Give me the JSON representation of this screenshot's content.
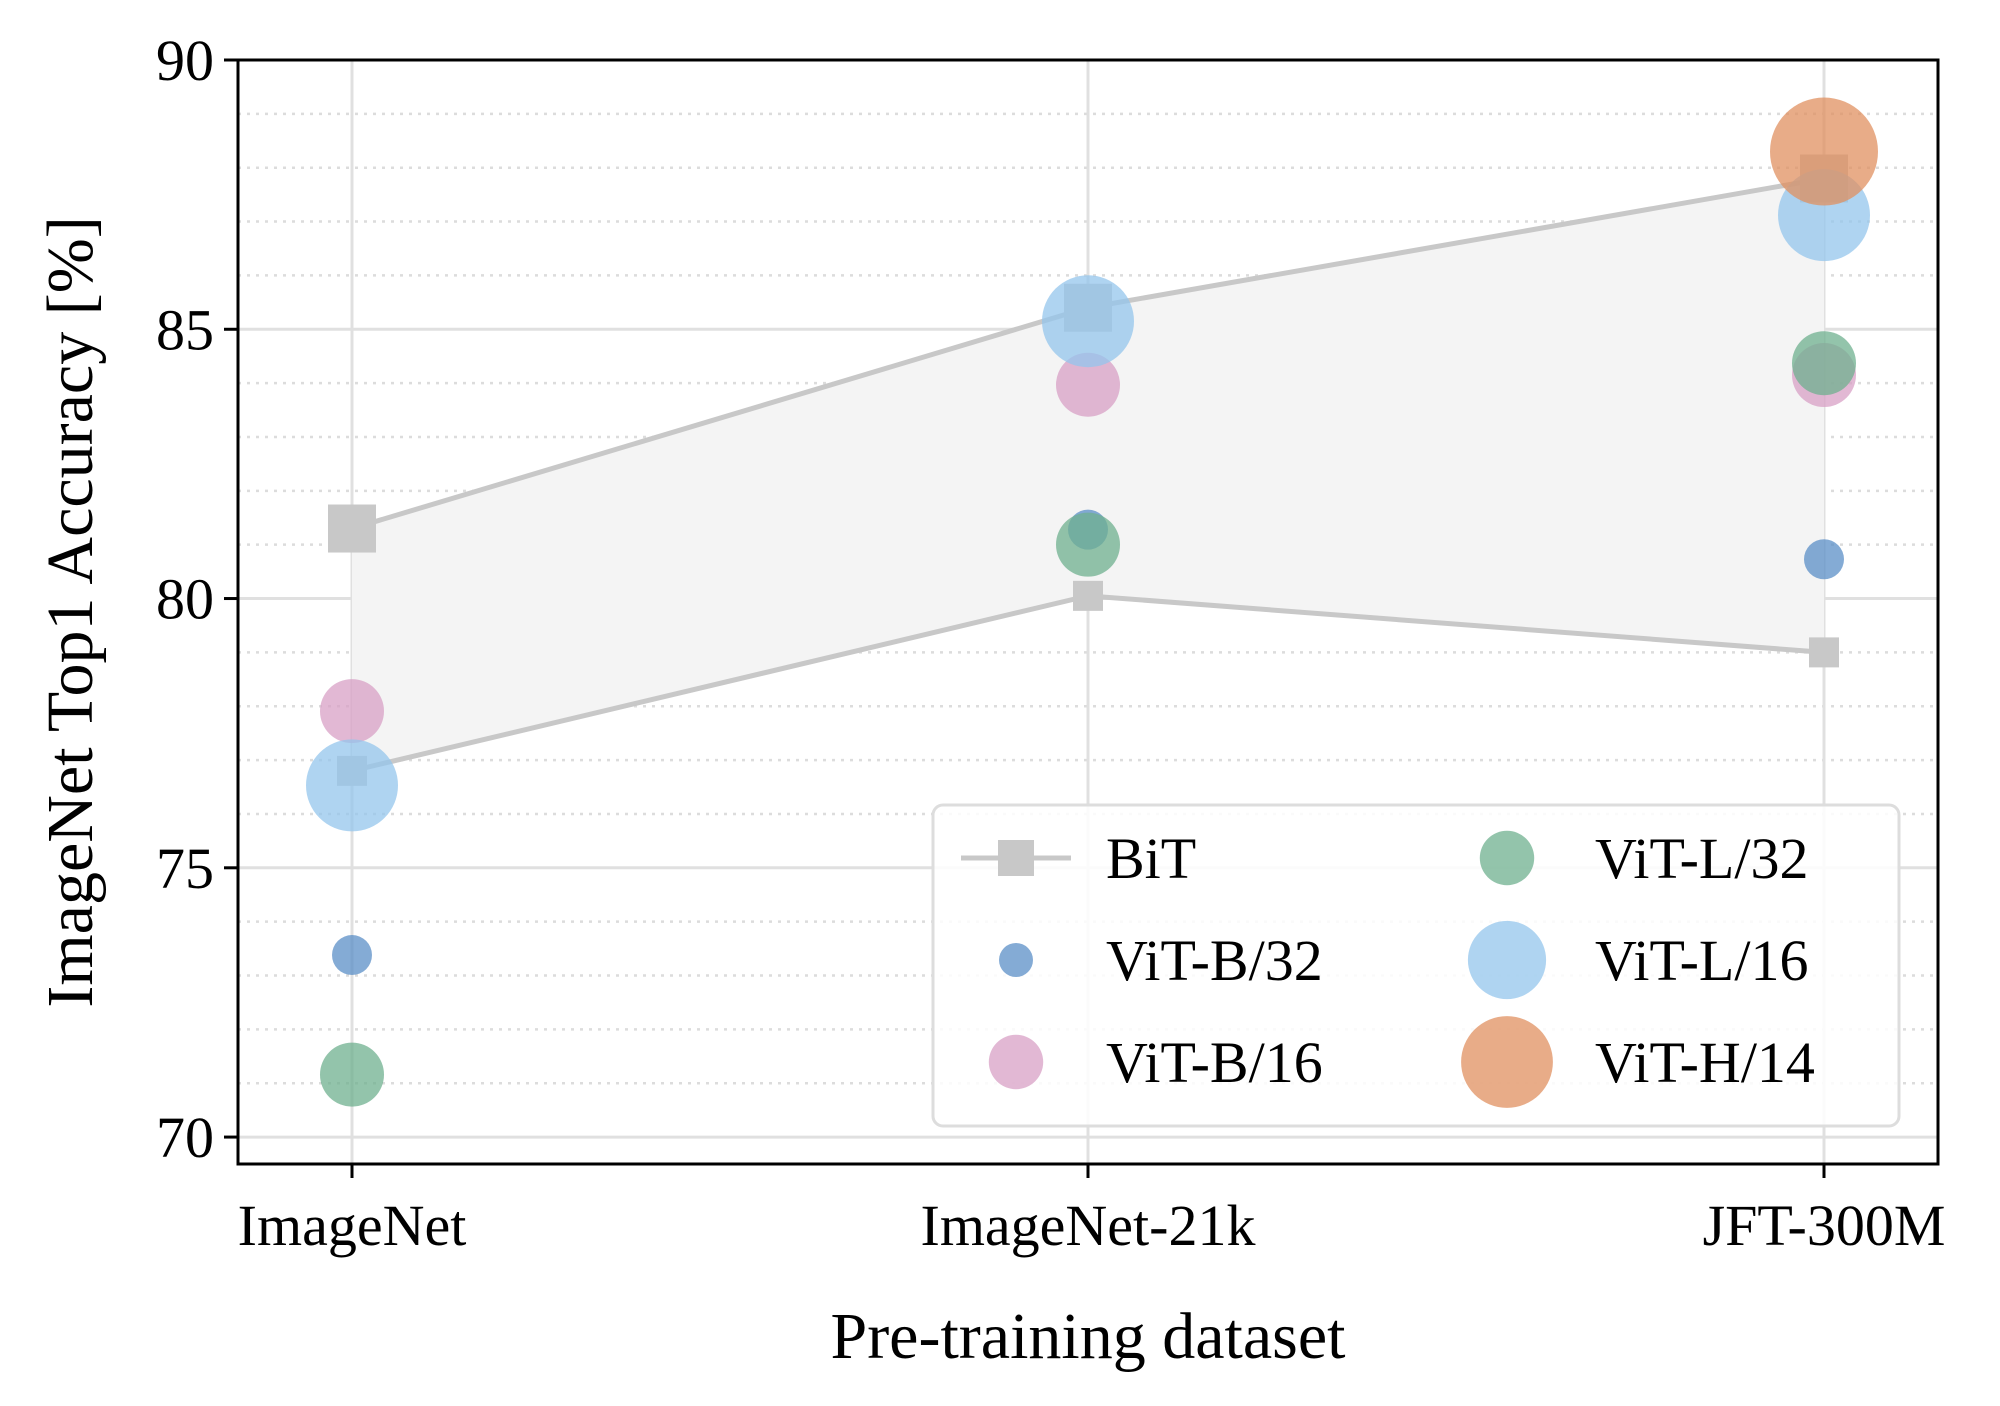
{
  "chart_data": {
    "type": "scatter",
    "xlabel": "Pre-training dataset",
    "ylabel": "ImageNet Top1 Accuracy [%]",
    "categories": [
      "ImageNet",
      "ImageNet-21k",
      "JFT-300M"
    ],
    "ylim": [
      69.5,
      90
    ],
    "yticks": [
      70,
      75,
      80,
      85,
      90
    ],
    "grid": {
      "major": true,
      "minor_dotted": true,
      "minor_step": 1
    },
    "legend": {
      "placement": "lower-right",
      "columns": 2
    },
    "band": {
      "name": "BiT",
      "color": "#c8c8c8",
      "fill": "#f4f4f4",
      "upper": [
        81.3,
        85.4,
        87.8
      ],
      "lower": [
        76.8,
        80.05,
        79.0
      ]
    },
    "series": [
      {
        "name": "ViT-B/32",
        "color": "#5b8fc7",
        "size": "small",
        "values": [
          73.38,
          81.28,
          80.73
        ]
      },
      {
        "name": "ViT-B/16",
        "color": "#d8a0c6",
        "size": "medium",
        "values": [
          77.91,
          83.97,
          84.15
        ]
      },
      {
        "name": "ViT-L/32",
        "color": "#6fb08f",
        "size": "medium",
        "values": [
          71.16,
          81.0,
          84.37
        ]
      },
      {
        "name": "ViT-L/16",
        "color": "#94c6ec",
        "size": "large",
        "values": [
          76.53,
          85.15,
          87.12
        ]
      },
      {
        "name": "ViT-H/14",
        "color": "#e09060",
        "size": "xlarge",
        "values": [
          null,
          null,
          88.3
        ]
      }
    ]
  }
}
